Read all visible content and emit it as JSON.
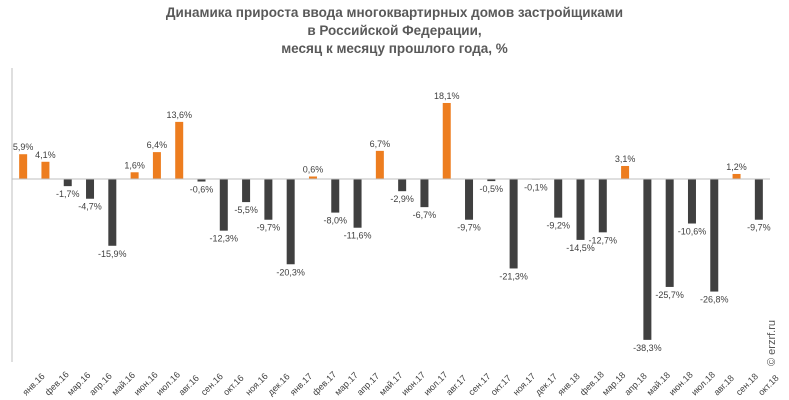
{
  "chart_data": {
    "type": "bar",
    "title_lines": [
      "Динамика прироста ввода многоквартирных домов застройщиками",
      "в Российской Федерации,",
      "месяц к месяцу прошлого года, %"
    ],
    "categories": [
      "янв.16",
      "фев.16",
      "мар.16",
      "апр.16",
      "май.16",
      "июн.16",
      "июл.16",
      "авг.16",
      "сен.16",
      "окт.16",
      "ноя.16",
      "дек.16",
      "янв.17",
      "фев.17",
      "мар.17",
      "апр.17",
      "май.17",
      "июн.17",
      "июл.17",
      "авг.17",
      "сен.17",
      "окт.17",
      "ноя.17",
      "дек.17",
      "янв.18",
      "фев.18",
      "мар.18",
      "апр.18",
      "май.18",
      "июн.18",
      "июл.18",
      "авг.18",
      "сен.18",
      "окт.18"
    ],
    "values": [
      5.9,
      4.1,
      -1.7,
      -4.7,
      -15.9,
      1.6,
      6.4,
      13.6,
      -0.6,
      -12.3,
      -5.5,
      -9.7,
      -20.3,
      0.6,
      -8.0,
      -11.6,
      6.7,
      -2.9,
      -6.7,
      18.1,
      -9.7,
      -0.5,
      -21.3,
      -0.1,
      -9.2,
      -14.5,
      -12.7,
      3.1,
      -38.3,
      -25.7,
      -10.6,
      -26.8,
      1.2,
      -9.7
    ],
    "value_labels": [
      "5,9%",
      "4,1%",
      "-1,7%",
      "-4,7%",
      "-15,9%",
      "1,6%",
      "6,4%",
      "13,6%",
      "-0,6%",
      "-12,3%",
      "-5,5%",
      "-9,7%",
      "-20,3%",
      "0,6%",
      "-8,0%",
      "-11,6%",
      "6,7%",
      "-2,9%",
      "-6,7%",
      "18,1%",
      "-9,7%",
      "-0,5%",
      "-21,3%",
      "-0,1%",
      "-9,2%",
      "-14,5%",
      "-12,7%",
      "3,1%",
      "-38,3%",
      "-25,7%",
      "-10,6%",
      "-26,8%",
      "1,2%",
      "-9,7%"
    ],
    "colors": {
      "positive": "#ED7D1F",
      "negative": "#404040",
      "axis": "#BFBFBF",
      "label": "#404040"
    },
    "ylim": [
      -38.3,
      18.1
    ],
    "grid": false,
    "legend": "none"
  },
  "watermark": "© erzrf.ru"
}
